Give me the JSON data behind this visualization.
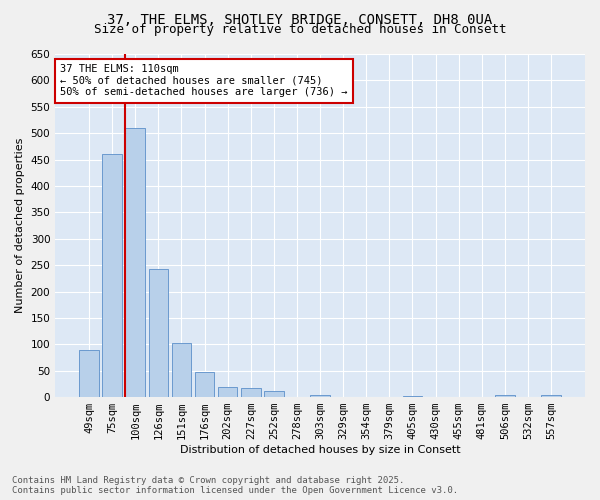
{
  "title1": "37, THE ELMS, SHOTLEY BRIDGE, CONSETT, DH8 0UA",
  "title2": "Size of property relative to detached houses in Consett",
  "xlabel": "Distribution of detached houses by size in Consett",
  "ylabel": "Number of detached properties",
  "categories": [
    "49sqm",
    "75sqm",
    "100sqm",
    "126sqm",
    "151sqm",
    "176sqm",
    "202sqm",
    "227sqm",
    "252sqm",
    "278sqm",
    "303sqm",
    "329sqm",
    "354sqm",
    "379sqm",
    "405sqm",
    "430sqm",
    "455sqm",
    "481sqm",
    "506sqm",
    "532sqm",
    "557sqm"
  ],
  "values": [
    90,
    460,
    510,
    243,
    103,
    48,
    20,
    17,
    11,
    0,
    4,
    0,
    0,
    0,
    2,
    0,
    0,
    0,
    3,
    0,
    3
  ],
  "bar_color": "#b8d0ea",
  "bar_edge_color": "#5b8fc9",
  "vline_index": 2,
  "vline_color": "#cc0000",
  "annotation_text": "37 THE ELMS: 110sqm\n← 50% of detached houses are smaller (745)\n50% of semi-detached houses are larger (736) →",
  "annotation_box_facecolor": "#ffffff",
  "annotation_box_edgecolor": "#cc0000",
  "ylim": [
    0,
    650
  ],
  "yticks": [
    0,
    50,
    100,
    150,
    200,
    250,
    300,
    350,
    400,
    450,
    500,
    550,
    600,
    650
  ],
  "bg_color": "#dde8f5",
  "grid_color": "#ffffff",
  "fig_bg_color": "#f0f0f0",
  "footer1": "Contains HM Land Registry data © Crown copyright and database right 2025.",
  "footer2": "Contains public sector information licensed under the Open Government Licence v3.0.",
  "title1_fontsize": 10,
  "title2_fontsize": 9,
  "axis_label_fontsize": 8,
  "tick_fontsize": 7.5,
  "annotation_fontsize": 7.5,
  "footer_fontsize": 6.5
}
